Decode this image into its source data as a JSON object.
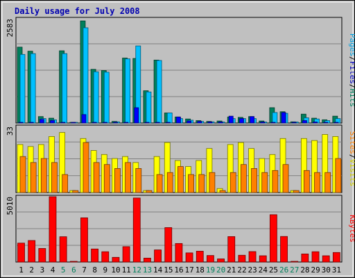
{
  "chart_data": {
    "type": "bar",
    "title": "Daily usage for July 2008",
    "categories": [
      "1",
      "2",
      "3",
      "4",
      "5",
      "6",
      "7",
      "8",
      "9",
      "10",
      "11",
      "12",
      "13",
      "14",
      "15",
      "16",
      "17",
      "18",
      "19",
      "20",
      "21",
      "22",
      "23",
      "24",
      "25",
      "26",
      "27",
      "28",
      "29",
      "30",
      "31"
    ],
    "weekend_days": [
      "5",
      "6",
      "12",
      "13",
      "19",
      "20",
      "26",
      "27"
    ],
    "panels": [
      {
        "id": "hits",
        "ymax": 2583,
        "ymax_label": "2583",
        "right_label": [
          "Pages",
          "/",
          "Files",
          "/",
          "Hits"
        ],
        "series": [
          {
            "name": "Hits",
            "color": "#00805c",
            "values": [
              1880,
              1780,
              160,
              120,
              1790,
              0,
              2530,
              1330,
              1300,
              40,
              1610,
              1600,
              800,
              1560,
              250,
              150,
              100,
              60,
              40,
              50,
              150,
              140,
              160,
              50,
              380,
              280,
              30,
              220,
              120,
              80,
              170
            ]
          },
          {
            "name": "Files",
            "color": "#00c0ff",
            "values": [
              1700,
              1720,
              110,
              80,
              1720,
              0,
              2360,
              1270,
              1260,
              30,
              1590,
              1910,
              770,
              1550,
              250,
              110,
              70,
              40,
              30,
              20,
              110,
              110,
              110,
              20,
              260,
              240,
              20,
              130,
              100,
              60,
              110
            ]
          },
          {
            "name": "Pages",
            "color": "#0000ff",
            "values": [
              0,
              0,
              90,
              60,
              0,
              0,
              210,
              0,
              0,
              0,
              0,
              380,
              0,
              0,
              0,
              150,
              50,
              40,
              20,
              10,
              170,
              110,
              160,
              10,
              0,
              260,
              0,
              60,
              20,
              0,
              0
            ]
          }
        ]
      },
      {
        "id": "visits",
        "ymax": 33,
        "ymax_label": "33",
        "right_label": [
          "Sites",
          "/",
          "Visits"
        ],
        "series": [
          {
            "name": "Visits",
            "color": "#ffff00",
            "values": [
              24,
              23,
              24,
              28,
              30,
              1,
              27,
              21,
              19,
              17,
              18,
              15,
              1,
              18,
              25,
              16,
              13,
              16,
              22,
              2,
              24,
              25,
              22,
              17,
              19,
              27,
              1,
              27,
              26,
              29,
              28
            ]
          },
          {
            "name": "Sites",
            "color": "#ff8000",
            "values": [
              18,
              15,
              17,
              15,
              9,
              1,
              25,
              15,
              14,
              12,
              15,
              12,
              1,
              9,
              10,
              13,
              9,
              9,
              10,
              1,
              10,
              14,
              12,
              10,
              11,
              14,
              1,
              11,
              10,
              10,
              17
            ]
          }
        ]
      },
      {
        "id": "kbytes",
        "ymax": 5010,
        "ymax_label": "5010",
        "right_label": [
          "KBytes"
        ],
        "series": [
          {
            "name": "KBytes",
            "color": "#ff0000",
            "values": [
              1450,
              1650,
              1040,
              5010,
              1940,
              0,
              3390,
              1000,
              790,
              360,
              1180,
              4910,
              300,
              930,
              2640,
              1420,
              700,
              830,
              500,
              240,
              1950,
              520,
              800,
              480,
              3630,
              1960,
              0,
              620,
              790,
              480,
              730
            ]
          }
        ]
      }
    ]
  }
}
